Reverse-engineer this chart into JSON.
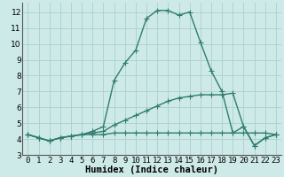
{
  "xlabel": "Humidex (Indice chaleur)",
  "ylabel": "",
  "background_color": "#ceeae8",
  "grid_color": "#aacfce",
  "line_color": "#2e7d6e",
  "xlim": [
    -0.5,
    23.5
  ],
  "ylim": [
    3,
    12.6
  ],
  "yticks": [
    3,
    4,
    5,
    6,
    7,
    8,
    9,
    10,
    11,
    12
  ],
  "xtick_labels": [
    "0",
    "1",
    "2",
    "3",
    "4",
    "5",
    "6",
    "7",
    "8",
    "9",
    "10",
    "11",
    "12",
    "13",
    "14",
    "15",
    "16",
    "17",
    "18",
    "19",
    "20",
    "21",
    "22",
    "23"
  ],
  "xtick_positions": [
    0,
    1,
    2,
    3,
    4,
    5,
    6,
    7,
    8,
    9,
    10,
    11,
    12,
    13,
    14,
    15,
    16,
    17,
    18,
    19,
    20,
    21,
    22,
    23
  ],
  "series": [
    {
      "x": [
        0,
        1,
        2,
        3,
        4,
        5,
        6,
        7,
        8,
        9,
        10,
        11,
        12,
        13,
        14,
        15,
        16,
        17,
        18,
        19,
        20,
        21,
        22,
        23
      ],
      "y": [
        4.3,
        4.1,
        3.9,
        4.1,
        4.2,
        4.3,
        4.3,
        4.3,
        4.4,
        4.4,
        4.4,
        4.4,
        4.4,
        4.4,
        4.4,
        4.4,
        4.4,
        4.4,
        4.4,
        4.4,
        4.4,
        4.4,
        4.4,
        4.3
      ]
    },
    {
      "x": [
        0,
        1,
        2,
        3,
        4,
        5,
        6,
        7,
        8,
        9,
        10,
        11,
        12,
        13,
        14,
        15,
        16,
        17,
        18,
        19,
        20,
        21,
        22,
        23
      ],
      "y": [
        4.3,
        4.1,
        3.9,
        4.1,
        4.2,
        4.3,
        4.4,
        4.5,
        4.9,
        5.2,
        5.5,
        5.8,
        6.1,
        6.4,
        6.6,
        6.7,
        6.8,
        6.8,
        6.8,
        6.9,
        4.8,
        3.6,
        4.1,
        4.3
      ]
    },
    {
      "x": [
        0,
        1,
        2,
        3,
        4,
        5,
        6,
        7,
        8,
        9,
        10,
        11,
        12,
        13,
        14,
        15,
        16,
        17,
        18,
        19,
        20,
        21,
        22,
        23
      ],
      "y": [
        4.3,
        4.1,
        3.9,
        4.1,
        4.2,
        4.3,
        4.5,
        4.8,
        7.7,
        8.8,
        9.6,
        11.6,
        12.1,
        12.1,
        11.8,
        12.0,
        10.1,
        8.3,
        7.0,
        4.4,
        4.8,
        3.6,
        4.1,
        4.3
      ]
    }
  ],
  "marker": "+",
  "markersize": 4,
  "linewidth": 1.0,
  "tick_fontsize": 6.5,
  "xlabel_fontsize": 7.5
}
